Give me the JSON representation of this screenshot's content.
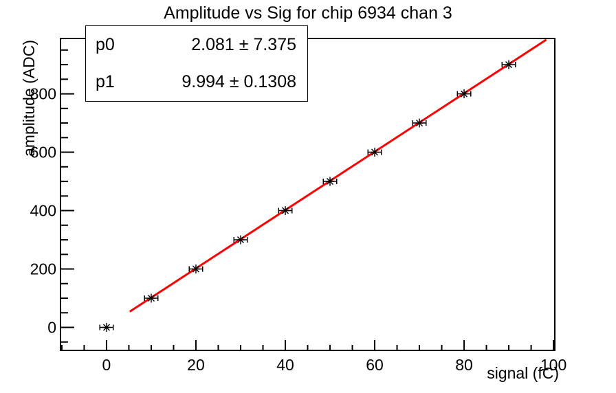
{
  "chart_data": {
    "type": "scatter",
    "title": "Amplitude vs Sig for chip 6934 chan 3",
    "xlabel": "signal (fC)",
    "ylabel": "amplitude (ADC)",
    "x": [
      0,
      10,
      20,
      30,
      40,
      50,
      60,
      70,
      80,
      90
    ],
    "y": [
      0,
      100,
      200,
      300,
      400,
      500,
      600,
      700,
      800,
      900
    ],
    "xerr": 1.5,
    "xlim": [
      -10.3,
      100.3
    ],
    "ylim": [
      -78.8,
      989.6
    ],
    "x_ticks": [
      0,
      20,
      40,
      60,
      80,
      100
    ],
    "y_ticks": [
      0,
      200,
      400,
      600,
      800
    ],
    "x_minor_step": 5,
    "y_minor_step": 50,
    "grid": false,
    "legend_position": "none",
    "marker": {
      "style": "asterisk",
      "color": "#000000"
    },
    "axis_color": "#000000",
    "background_color": "#ffffff",
    "fit": {
      "type": "linear",
      "p0": 2.081,
      "p1": 9.994,
      "x_range": [
        5.2,
        98.4
      ],
      "color": "#ff0000"
    }
  },
  "stats_box": {
    "rows": [
      {
        "name": "p0",
        "value": "2.081 ± 7.375"
      },
      {
        "name": "p1",
        "value": "9.994 ± 0.1308"
      }
    ]
  }
}
